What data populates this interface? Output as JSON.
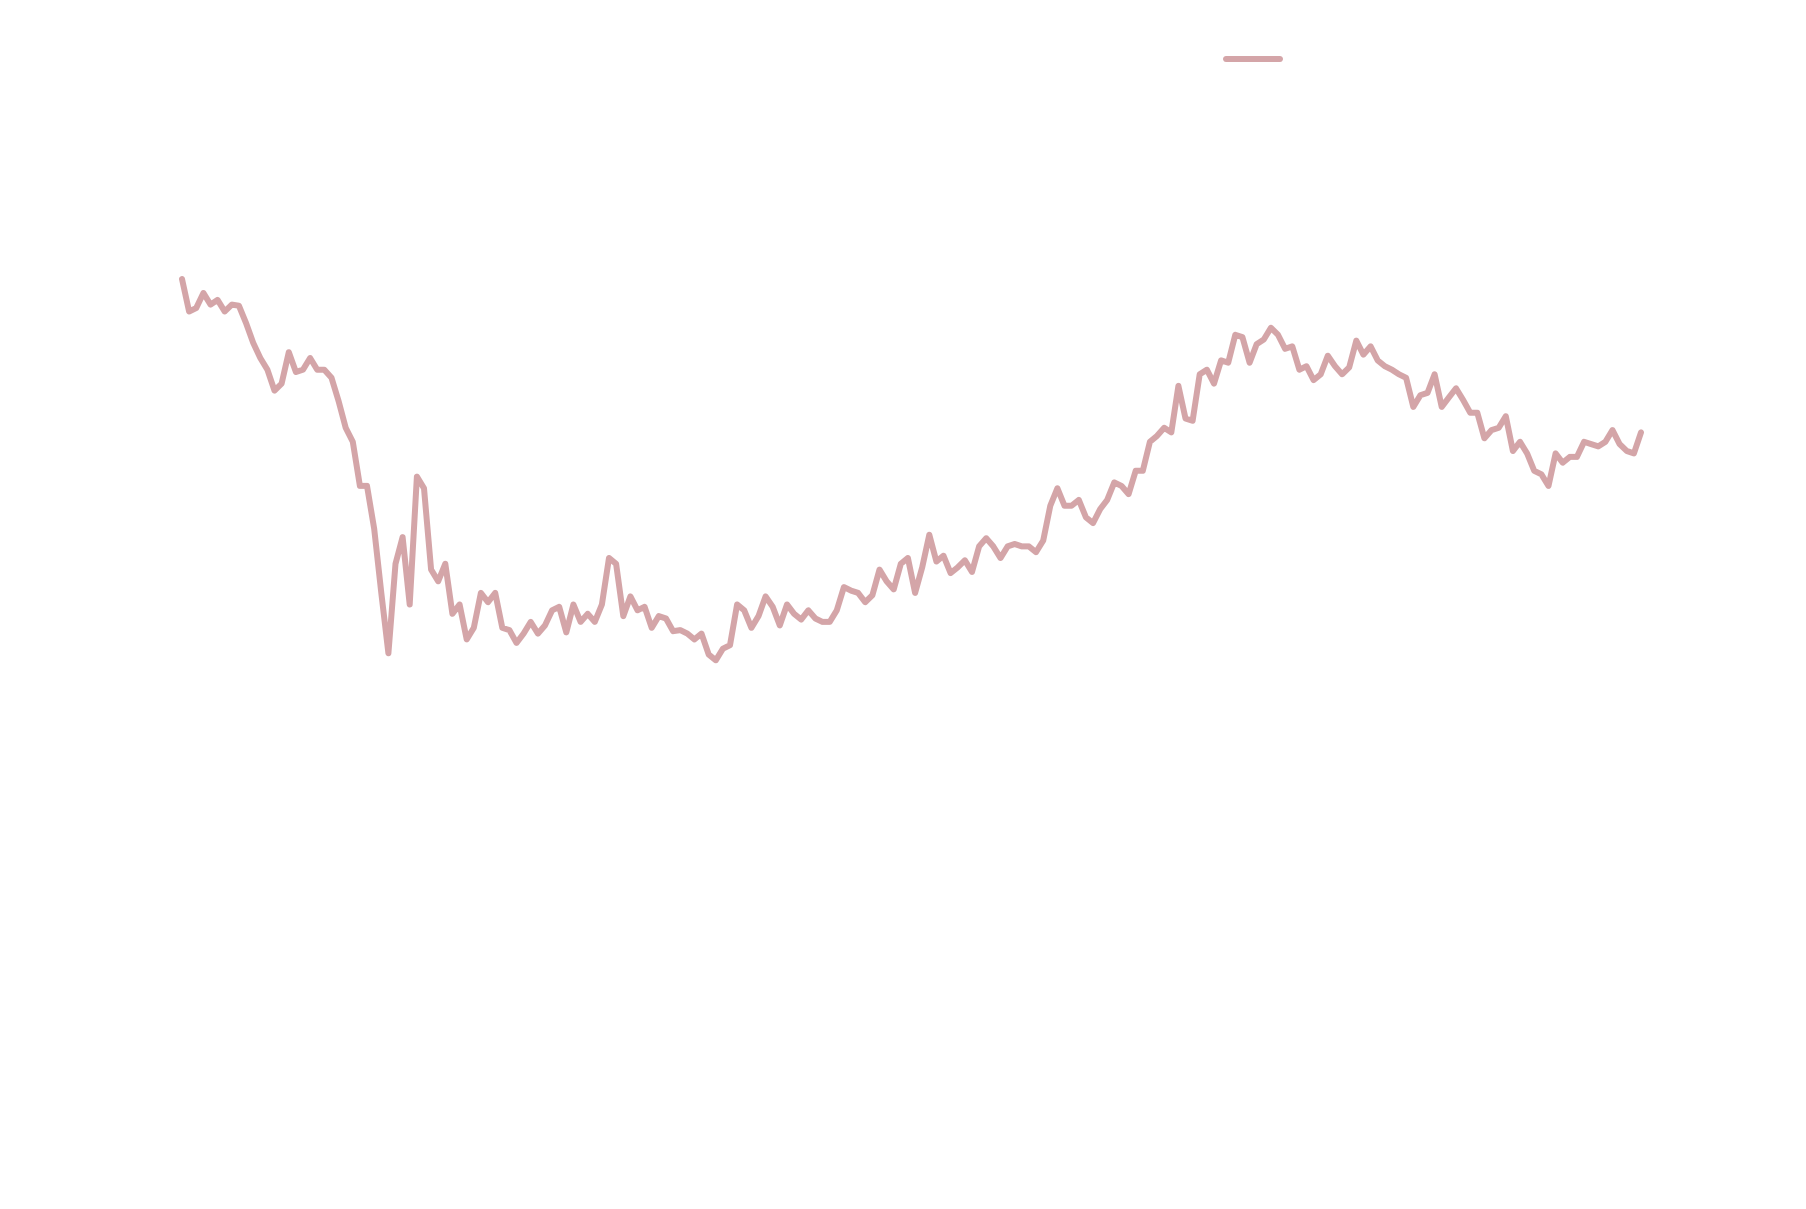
{
  "chart_data": {
    "type": "line",
    "ylim": [
      0,
      1040
    ],
    "series": [
      {
        "color": "#d4a5a8",
        "values": [
          800,
          772,
          775,
          788,
          778,
          782,
          772,
          778,
          777,
          762,
          745,
          732,
          722,
          704,
          710,
          737,
          720,
          722,
          732,
          722,
          722,
          715,
          695,
          672,
          660,
          622,
          622,
          585,
          530,
          478,
          555,
          578,
          520,
          630,
          620,
          550,
          540,
          555,
          512,
          520,
          490,
          500,
          530,
          522,
          530,
          500,
          498,
          487,
          495,
          505,
          495,
          502,
          515,
          518,
          496,
          520,
          505,
          512,
          505,
          520,
          560,
          555,
          510,
          527,
          515,
          518,
          500,
          510,
          508,
          497,
          498,
          495,
          490,
          495,
          477,
          472,
          482,
          485,
          520,
          515,
          500,
          510,
          527,
          518,
          502,
          520,
          512,
          507,
          515,
          508,
          505,
          505,
          515,
          535,
          532,
          530,
          522,
          528,
          550,
          540,
          533,
          555,
          560,
          530,
          552,
          580,
          557,
          562,
          547,
          552,
          558,
          548,
          570,
          577,
          570,
          560,
          570,
          572,
          570,
          570,
          565,
          575,
          605,
          620,
          605,
          605,
          610,
          595,
          590,
          602,
          610,
          625,
          622,
          615,
          635,
          635,
          660,
          665,
          672,
          668,
          708,
          680,
          678,
          718,
          722,
          710,
          730,
          728,
          752,
          750,
          728,
          744,
          748,
          758,
          752,
          740,
          742,
          722,
          725,
          713,
          718,
          734,
          725,
          718,
          724,
          747,
          735,
          742,
          730,
          725,
          722,
          718,
          715,
          690,
          700,
          702,
          718,
          690,
          698,
          706,
          696,
          685,
          685,
          663,
          670,
          672,
          682,
          652,
          660,
          650,
          635,
          632,
          622,
          650,
          642,
          647,
          647,
          660,
          658,
          656,
          660,
          670,
          658,
          652,
          650,
          668
        ]
      }
    ]
  }
}
